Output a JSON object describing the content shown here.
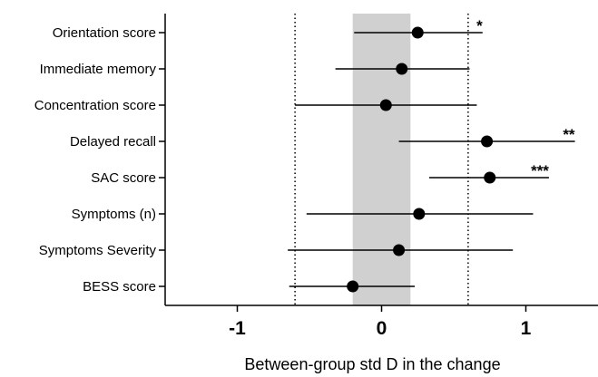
{
  "chart_data": {
    "type": "forest",
    "title": "",
    "xlabel": "Between-group std D in the change",
    "ylabel": "",
    "xlim": [
      -1.5,
      1.5
    ],
    "xticks": [
      -1,
      0,
      1
    ],
    "xtick_labels": [
      "-1",
      "0",
      "1"
    ],
    "grid": false,
    "shaded_band": [
      -0.2,
      0.2
    ],
    "reference_lines": [
      -0.6,
      0.6
    ],
    "categories": [
      "Orientation score",
      "Immediate memory",
      "Concentration score",
      "Delayed recall",
      "SAC score",
      "Symptoms (n)",
      "Symptoms Severity",
      "BESS score"
    ],
    "estimates": [
      0.25,
      0.14,
      0.03,
      0.73,
      0.75,
      0.26,
      0.12,
      -0.2
    ],
    "ci_lower": [
      -0.19,
      -0.32,
      -0.6,
      0.12,
      0.33,
      -0.52,
      -0.65,
      -0.64
    ],
    "ci_upper": [
      0.7,
      0.61,
      0.66,
      1.34,
      1.16,
      1.05,
      0.91,
      0.23
    ],
    "significance": [
      "*",
      "",
      "",
      "**",
      "***",
      "",
      "",
      ""
    ]
  },
  "colors": {
    "band": "#d0d0d0",
    "marker": "#000000",
    "line": "#000000"
  }
}
